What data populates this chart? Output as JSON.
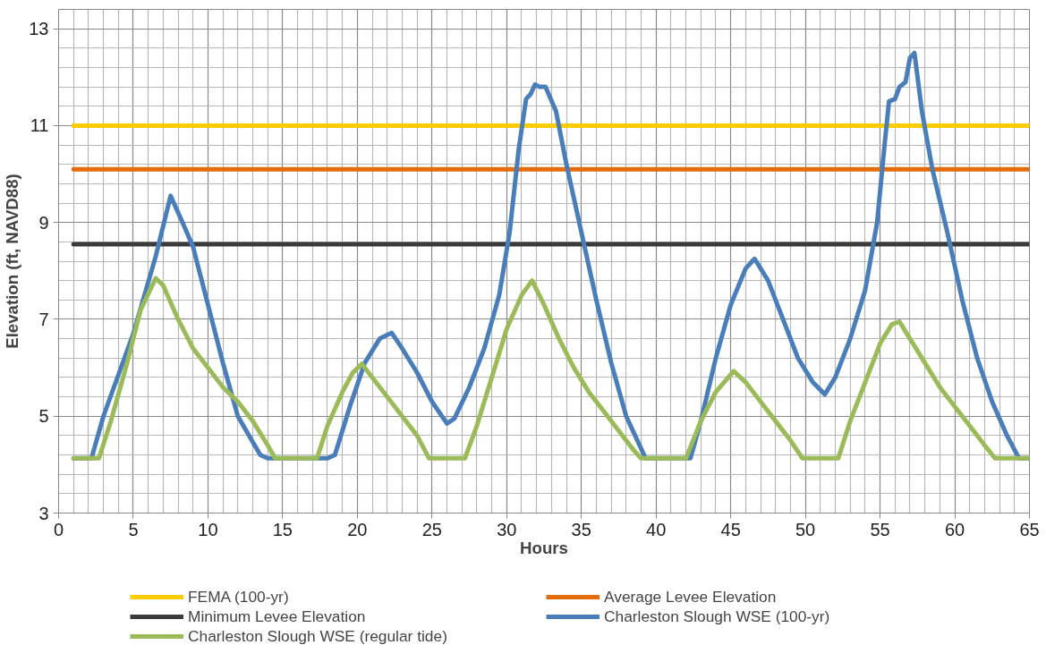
{
  "chart_data": {
    "type": "line",
    "xlabel": "Hours",
    "ylabel": "Elevation (ft, NAVD88)",
    "xlim": [
      0,
      65
    ],
    "xticks": [
      0,
      5,
      10,
      15,
      20,
      25,
      30,
      35,
      40,
      45,
      50,
      55,
      60,
      65
    ],
    "ylim": [
      3,
      13.4
    ],
    "yticks": [
      3,
      5,
      7,
      9,
      11,
      13
    ],
    "grid": true,
    "legend": "bottom",
    "marker": "none",
    "line_style": "solid",
    "series": [
      {
        "name": "FEMA (100-yr)",
        "color": "#ffcc00",
        "x": [
          1,
          65
        ],
        "values": [
          11,
          11
        ]
      },
      {
        "name": "Average Levee Elevation",
        "color": "#e46c0a",
        "x": [
          1,
          65
        ],
        "values": [
          10.1,
          10.1
        ]
      },
      {
        "name": "Minimum Levee Elevation",
        "color": "#3a3a3a",
        "x": [
          1,
          65
        ],
        "values": [
          8.55,
          8.55
        ]
      },
      {
        "name": "Charleston Slough WSE (100-yr)",
        "color": "#4a7ebb",
        "x": [
          1,
          2.2,
          3,
          5,
          6.5,
          7.5,
          8.3,
          9,
          10,
          11,
          12,
          13.5,
          14,
          18,
          18.5,
          19.5,
          20.5,
          21.5,
          22.3,
          23,
          24,
          25,
          26,
          26.5,
          27.5,
          28.5,
          29.5,
          30.2,
          30.8,
          31.3,
          31.6,
          31.9,
          32.2,
          32.6,
          33.3,
          34,
          35,
          36,
          37,
          38,
          39.3,
          42.3,
          43,
          44,
          45,
          46,
          46.6,
          47.5,
          48.5,
          49.5,
          50.5,
          51.3,
          52,
          53,
          54,
          54.8,
          55.3,
          55.6,
          56,
          56.3,
          56.7,
          57,
          57.3,
          57.8,
          58.5,
          59.5,
          60.5,
          61.5,
          62.5,
          63.5,
          64.3,
          65
        ],
        "values": [
          4.13,
          4.13,
          5.0,
          6.7,
          8.3,
          9.55,
          9.0,
          8.5,
          7.3,
          6.1,
          5.0,
          4.2,
          4.13,
          4.13,
          4.2,
          5.2,
          6.1,
          6.6,
          6.72,
          6.4,
          5.9,
          5.3,
          4.85,
          4.95,
          5.6,
          6.4,
          7.5,
          8.8,
          10.5,
          11.55,
          11.65,
          11.85,
          11.8,
          11.8,
          11.3,
          10.2,
          8.8,
          7.4,
          6.1,
          5.0,
          4.13,
          4.13,
          4.9,
          6.2,
          7.3,
          8.05,
          8.25,
          7.8,
          7.0,
          6.2,
          5.7,
          5.45,
          5.8,
          6.6,
          7.6,
          9.0,
          10.6,
          11.5,
          11.55,
          11.8,
          11.9,
          12.4,
          12.5,
          11.3,
          10.1,
          8.8,
          7.4,
          6.2,
          5.3,
          4.6,
          4.13,
          4.13
        ]
      },
      {
        "name": "Charleston Slough WSE (regular tide)",
        "color": "#9bbb59",
        "x": [
          1,
          2.7,
          3.5,
          4.5,
          5.5,
          6.5,
          7,
          8,
          9,
          10,
          11,
          12,
          13,
          14,
          14.5,
          17.3,
          18,
          19,
          19.7,
          20.3,
          21,
          22,
          23,
          24,
          24.8,
          27.2,
          28,
          29,
          30,
          31,
          31.7,
          32.5,
          33.5,
          34.5,
          35.5,
          36.5,
          37.5,
          38.5,
          39,
          42,
          43,
          44,
          45.2,
          46,
          47,
          48,
          49,
          49.8,
          52.2,
          53,
          54,
          55,
          55.8,
          56.3,
          57,
          58,
          59,
          60,
          61,
          62,
          62.7,
          65
        ],
        "values": [
          4.13,
          4.13,
          4.9,
          6.0,
          7.2,
          7.85,
          7.7,
          7.0,
          6.4,
          6.0,
          5.6,
          5.3,
          4.9,
          4.4,
          4.13,
          4.13,
          4.8,
          5.5,
          5.9,
          6.08,
          5.8,
          5.4,
          5.0,
          4.6,
          4.13,
          4.13,
          4.8,
          5.8,
          6.8,
          7.5,
          7.8,
          7.3,
          6.6,
          6.0,
          5.5,
          5.1,
          4.7,
          4.3,
          4.13,
          4.13,
          4.9,
          5.5,
          5.93,
          5.7,
          5.3,
          4.9,
          4.5,
          4.13,
          4.13,
          4.9,
          5.7,
          6.5,
          6.9,
          6.95,
          6.6,
          6.1,
          5.6,
          5.2,
          4.8,
          4.4,
          4.13,
          4.13
        ]
      }
    ]
  }
}
